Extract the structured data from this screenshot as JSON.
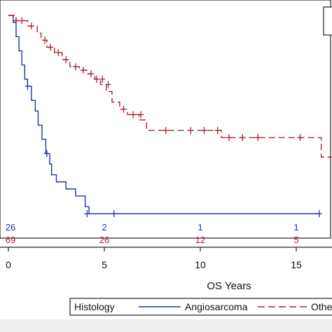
{
  "chart_data": {
    "type": "line",
    "subtype": "kaplan-meier",
    "title": "",
    "xlabel": "OS Years",
    "ylabel": "",
    "xlim": [
      0,
      17
    ],
    "ylim": [
      0,
      1
    ],
    "x_ticks": [
      0,
      5,
      10,
      15
    ],
    "grid": false,
    "legend": {
      "title": "Histology",
      "placement": "bottom",
      "entries": [
        "Angiosarcoma",
        "Othe"
      ]
    },
    "series": [
      {
        "name": "Angiosarcoma",
        "color": "#2233aa",
        "dash": "solid",
        "steps": [
          [
            0,
            1.0
          ],
          [
            0.25,
            0.96
          ],
          [
            0.4,
            0.88
          ],
          [
            0.55,
            0.8
          ],
          [
            0.7,
            0.72
          ],
          [
            0.85,
            0.64
          ],
          [
            1.0,
            0.6
          ],
          [
            1.2,
            0.52
          ],
          [
            1.4,
            0.46
          ],
          [
            1.55,
            0.38
          ],
          [
            1.75,
            0.3
          ],
          [
            1.95,
            0.22
          ],
          [
            2.15,
            0.16
          ],
          [
            2.25,
            0.1
          ],
          [
            2.5,
            0.06
          ],
          [
            3.0,
            0.02
          ],
          [
            3.5,
            -0.02
          ],
          [
            4.0,
            -0.08
          ],
          [
            4.2,
            -0.12
          ],
          [
            16.2,
            -0.12
          ]
        ],
        "censor": [
          [
            1.0,
            0.6
          ],
          [
            2.0,
            0.22
          ],
          [
            4.1,
            -0.12
          ],
          [
            5.5,
            -0.12
          ],
          [
            16.2,
            -0.12
          ]
        ]
      },
      {
        "name": "Othe",
        "color": "#aa2233",
        "dash": "dashed",
        "steps": [
          [
            0,
            1.0
          ],
          [
            0.4,
            0.97
          ],
          [
            1.0,
            0.94
          ],
          [
            1.5,
            0.9
          ],
          [
            1.7,
            0.86
          ],
          [
            2.0,
            0.82
          ],
          [
            2.4,
            0.79
          ],
          [
            2.8,
            0.75
          ],
          [
            3.2,
            0.71
          ],
          [
            3.7,
            0.69
          ],
          [
            4.1,
            0.67
          ],
          [
            4.5,
            0.64
          ],
          [
            4.8,
            0.61
          ],
          [
            5.1,
            0.57
          ],
          [
            5.4,
            0.51
          ],
          [
            5.8,
            0.47
          ],
          [
            6.2,
            0.44
          ],
          [
            6.8,
            0.41
          ],
          [
            7.2,
            0.35
          ],
          [
            11.1,
            0.31
          ],
          [
            16.3,
            0.2
          ],
          [
            17,
            0.2
          ]
        ],
        "censor": [
          [
            0.4,
            0.97
          ],
          [
            0.7,
            0.97
          ],
          [
            1.2,
            0.94
          ],
          [
            1.9,
            0.86
          ],
          [
            2.2,
            0.82
          ],
          [
            2.6,
            0.79
          ],
          [
            3.0,
            0.75
          ],
          [
            3.5,
            0.71
          ],
          [
            3.9,
            0.69
          ],
          [
            4.3,
            0.67
          ],
          [
            4.6,
            0.64
          ],
          [
            4.9,
            0.64
          ],
          [
            5.2,
            0.61
          ],
          [
            6.0,
            0.47
          ],
          [
            6.5,
            0.44
          ],
          [
            6.9,
            0.44
          ],
          [
            8.2,
            0.35
          ],
          [
            9.5,
            0.35
          ],
          [
            10.2,
            0.35
          ],
          [
            10.9,
            0.35
          ],
          [
            11.5,
            0.31
          ],
          [
            12.2,
            0.31
          ],
          [
            13.0,
            0.31
          ],
          [
            15.2,
            0.31
          ]
        ]
      }
    ],
    "risk_table": {
      "times": [
        0,
        5,
        10,
        15
      ],
      "rows": [
        {
          "name": "Angiosarcoma",
          "color": "#2233aa",
          "counts": [
            "26",
            "2",
            "1",
            "1"
          ]
        },
        {
          "name": "Othe",
          "color": "#aa2233",
          "counts": [
            "69",
            "26",
            "12",
            "5"
          ]
        }
      ]
    }
  }
}
